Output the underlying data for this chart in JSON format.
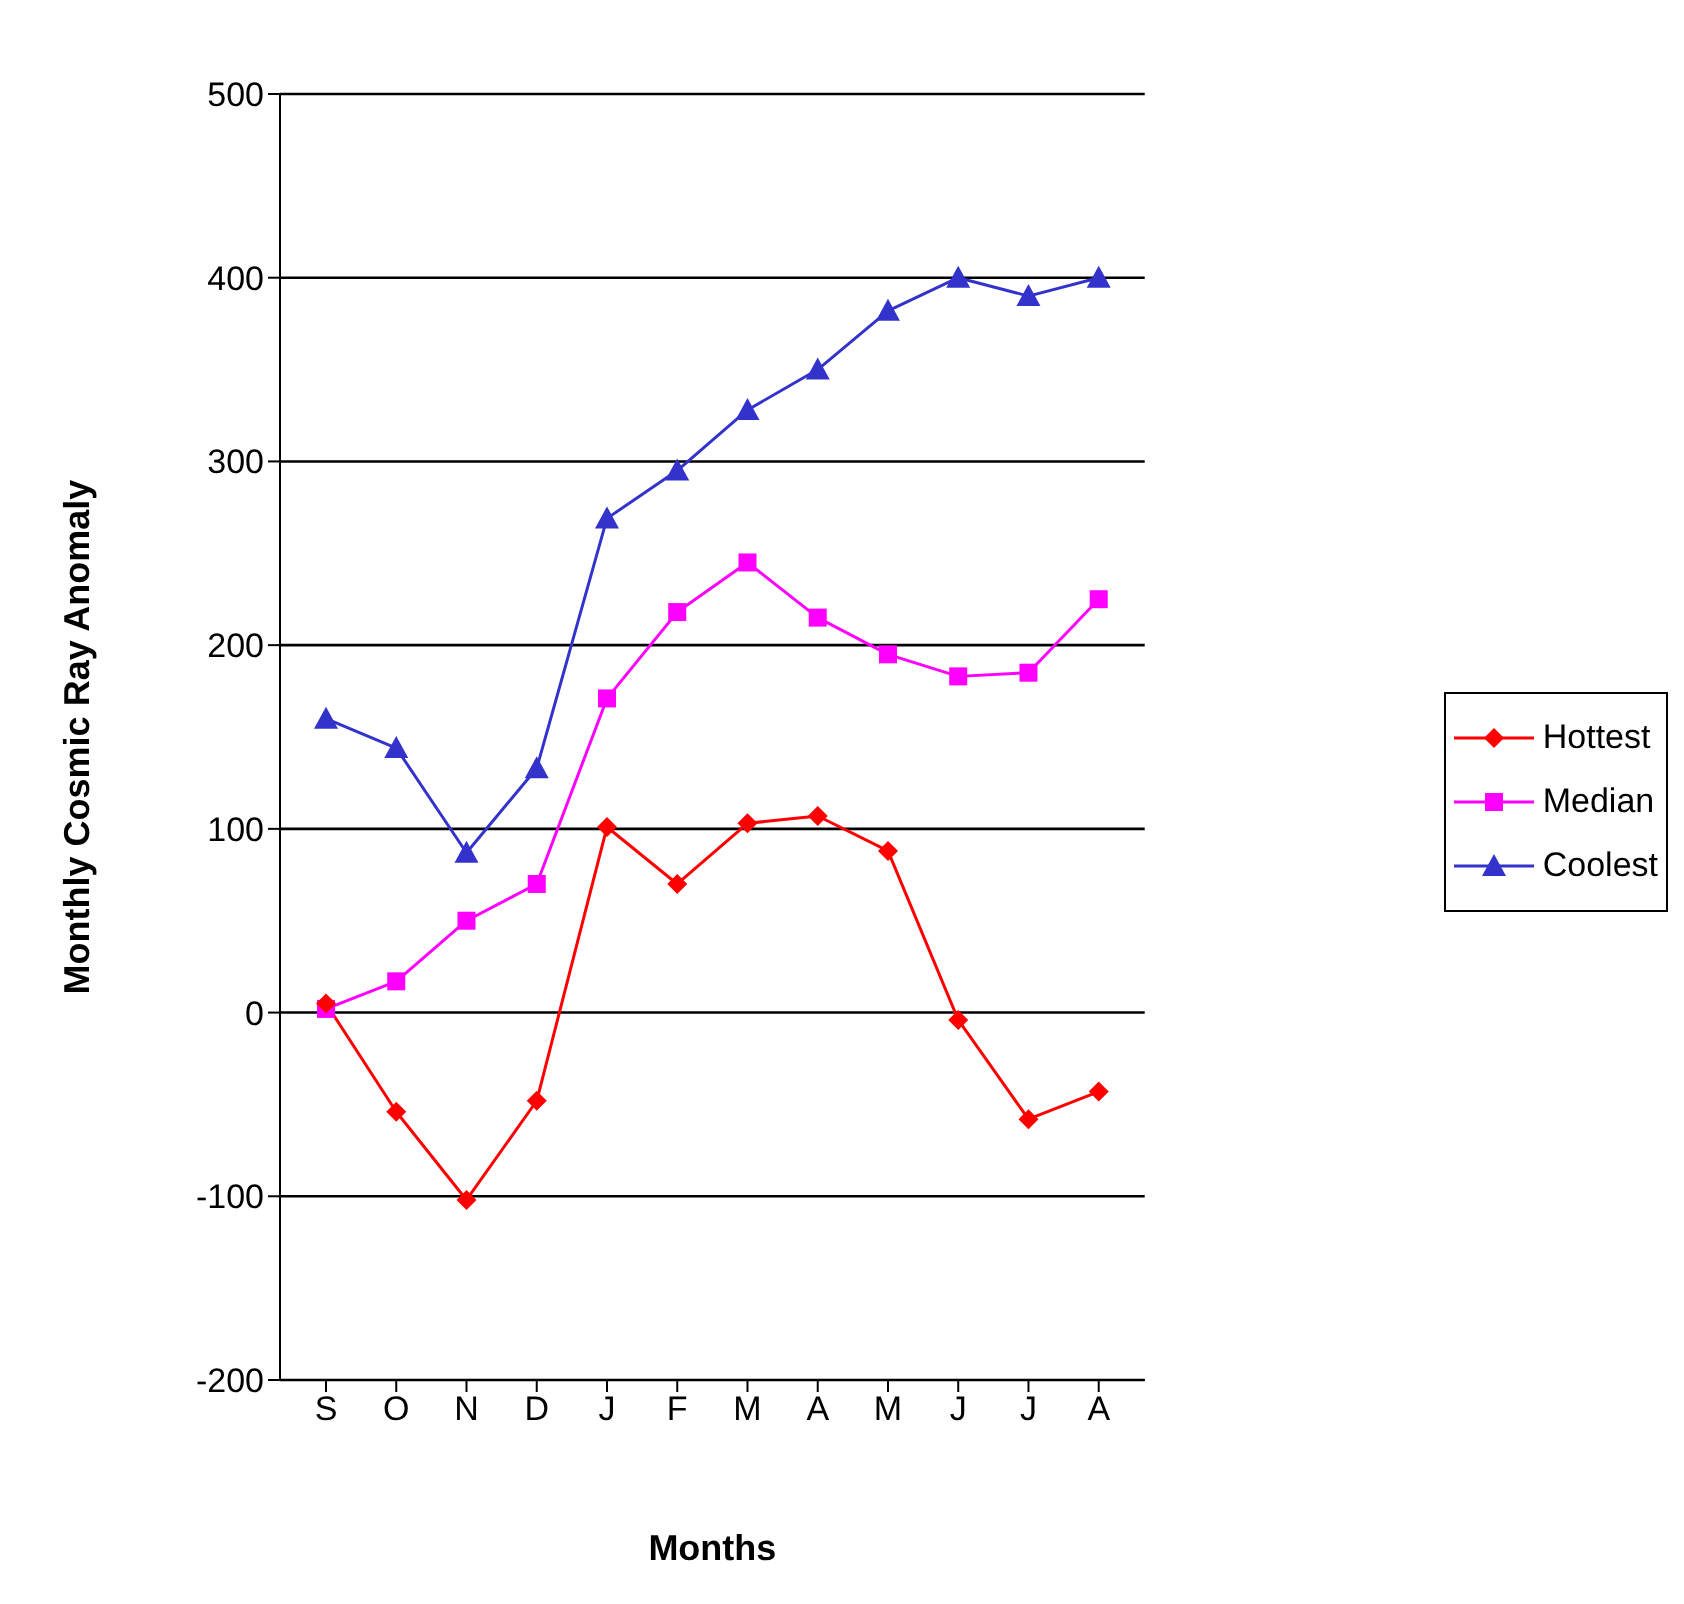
{
  "chart_data": {
    "type": "line",
    "xlabel": "Months",
    "ylabel": "Monthly Cosmic Ray Anomaly",
    "categories": [
      "S",
      "O",
      "N",
      "D",
      "J",
      "F",
      "M",
      "A",
      "M",
      "J",
      "J",
      "A"
    ],
    "series": [
      {
        "name": "Hottest",
        "color": "#ff0000",
        "marker": "diamond",
        "values": [
          5,
          -54,
          -102,
          -48,
          101,
          70,
          103,
          107,
          88,
          -4,
          -58,
          -43
        ]
      },
      {
        "name": "Median",
        "color": "#ff00ff",
        "marker": "square",
        "values": [
          2,
          17,
          50,
          70,
          171,
          218,
          245,
          215,
          195,
          183,
          185,
          225
        ]
      },
      {
        "name": "Coolest",
        "color": "#3333cc",
        "marker": "triangle",
        "values": [
          160,
          144,
          87,
          133,
          269,
          295,
          328,
          350,
          382,
          400,
          390,
          400
        ]
      }
    ],
    "ylim": [
      -200,
      500
    ],
    "yticks": [
      -200,
      -100,
      0,
      100,
      200,
      300,
      400,
      500
    ],
    "grid": "y",
    "legend": "right",
    "line_style": "solid"
  }
}
